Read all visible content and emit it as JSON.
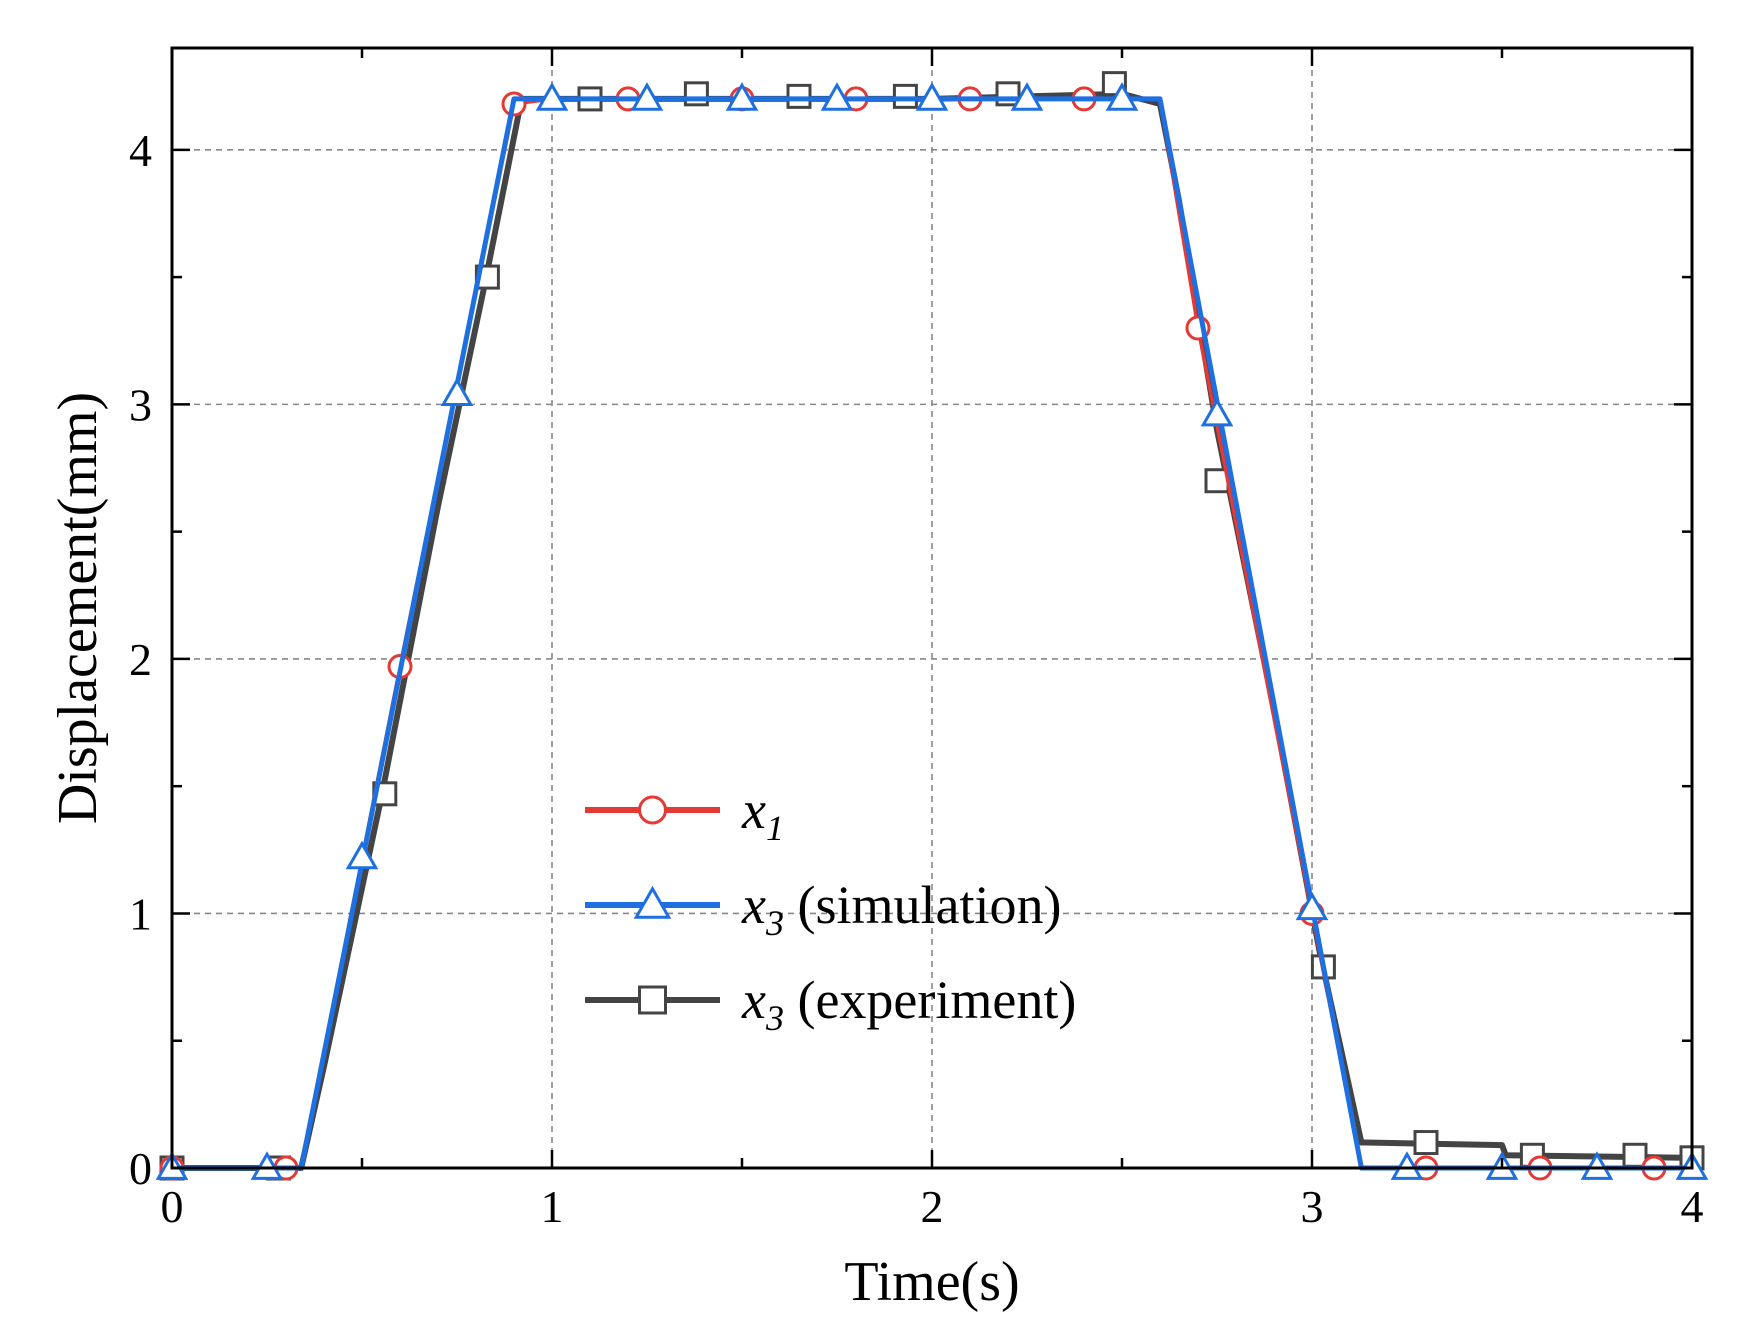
{
  "chart_data": {
    "type": "line",
    "xlabel": "Time(s)",
    "ylabel": "Displacement(mm)",
    "xlim": [
      0,
      4
    ],
    "ylim": [
      0,
      4.4
    ],
    "xticks": [
      0,
      1,
      2,
      3,
      4
    ],
    "xtick_labels": [
      "0",
      "1",
      "2",
      "3",
      "4"
    ],
    "yticks": [
      0,
      1,
      2,
      3,
      4
    ],
    "ytick_labels": [
      "0",
      "1",
      "2",
      "3",
      "4"
    ],
    "grid": true,
    "legend_position": "center-left",
    "series": [
      {
        "name": "x1",
        "legend_main": "x",
        "legend_sub": "1",
        "legend_suffix": "",
        "color": "#e53935",
        "marker": "circle",
        "x": [
          0.0,
          0.3,
          0.34,
          0.6,
          0.9,
          1.0,
          2.6,
          2.7,
          3.0,
          3.13,
          4.0
        ],
        "y": [
          0.0,
          0.0,
          0.0,
          1.97,
          4.18,
          4.2,
          4.2,
          3.3,
          1.0,
          0.0,
          0.0
        ],
        "marker_x": [
          0.0,
          0.3,
          0.6,
          0.9,
          1.2,
          1.5,
          1.8,
          2.1,
          2.4,
          2.7,
          3.0,
          3.3,
          3.6,
          3.9
        ],
        "marker_y": [
          0.0,
          0.0,
          1.97,
          4.18,
          4.2,
          4.2,
          4.2,
          4.2,
          4.2,
          3.3,
          1.0,
          0.0,
          0.0,
          0.0
        ]
      },
      {
        "name": "x3 (simulation)",
        "legend_main": "x",
        "legend_sub": "3",
        "legend_suffix": " (simulation)",
        "color": "#1e6fe0",
        "marker": "triangle",
        "x": [
          0.0,
          0.34,
          0.9,
          2.6,
          3.13,
          4.0
        ],
        "y": [
          0.0,
          0.0,
          4.2,
          4.2,
          0.0,
          0.0
        ],
        "marker_x": [
          0.0,
          0.25,
          0.5,
          0.75,
          1.0,
          1.25,
          1.5,
          1.75,
          2.0,
          2.25,
          2.5,
          2.75,
          3.0,
          3.25,
          3.5,
          3.75,
          4.0
        ],
        "marker_y": [
          0.0,
          0.0,
          1.22,
          3.04,
          4.2,
          4.2,
          4.2,
          4.2,
          4.2,
          4.2,
          4.2,
          2.96,
          1.02,
          0.0,
          0.0,
          0.0,
          0.0
        ]
      },
      {
        "name": "x3 (experiment)",
        "legend_main": "x",
        "legend_sub": "3",
        "legend_suffix": " (experiment)",
        "color": "#444444",
        "marker": "square",
        "x": [
          0.0,
          0.34,
          0.4,
          0.55,
          0.7,
          0.82,
          0.92,
          1.0,
          1.5,
          2.0,
          2.5,
          2.6,
          2.65,
          2.75,
          2.9,
          3.02,
          3.13,
          3.14,
          3.5,
          3.51,
          4.0
        ],
        "y": [
          0.0,
          0.0,
          0.4,
          1.45,
          2.6,
          3.45,
          4.2,
          4.2,
          4.2,
          4.2,
          4.22,
          4.18,
          3.8,
          2.9,
          1.8,
          0.85,
          0.1,
          0.1,
          0.09,
          0.05,
          0.04
        ],
        "marker_x": [
          0.0,
          0.28,
          0.56,
          0.83,
          1.1,
          1.38,
          1.65,
          1.93,
          2.2,
          2.48,
          2.75,
          3.03,
          3.3,
          3.58,
          3.85,
          4.0
        ],
        "marker_y": [
          0.0,
          0.0,
          1.47,
          3.5,
          4.2,
          4.22,
          4.21,
          4.21,
          4.22,
          4.26,
          2.7,
          0.79,
          0.1,
          0.05,
          0.05,
          0.04
        ]
      }
    ]
  }
}
